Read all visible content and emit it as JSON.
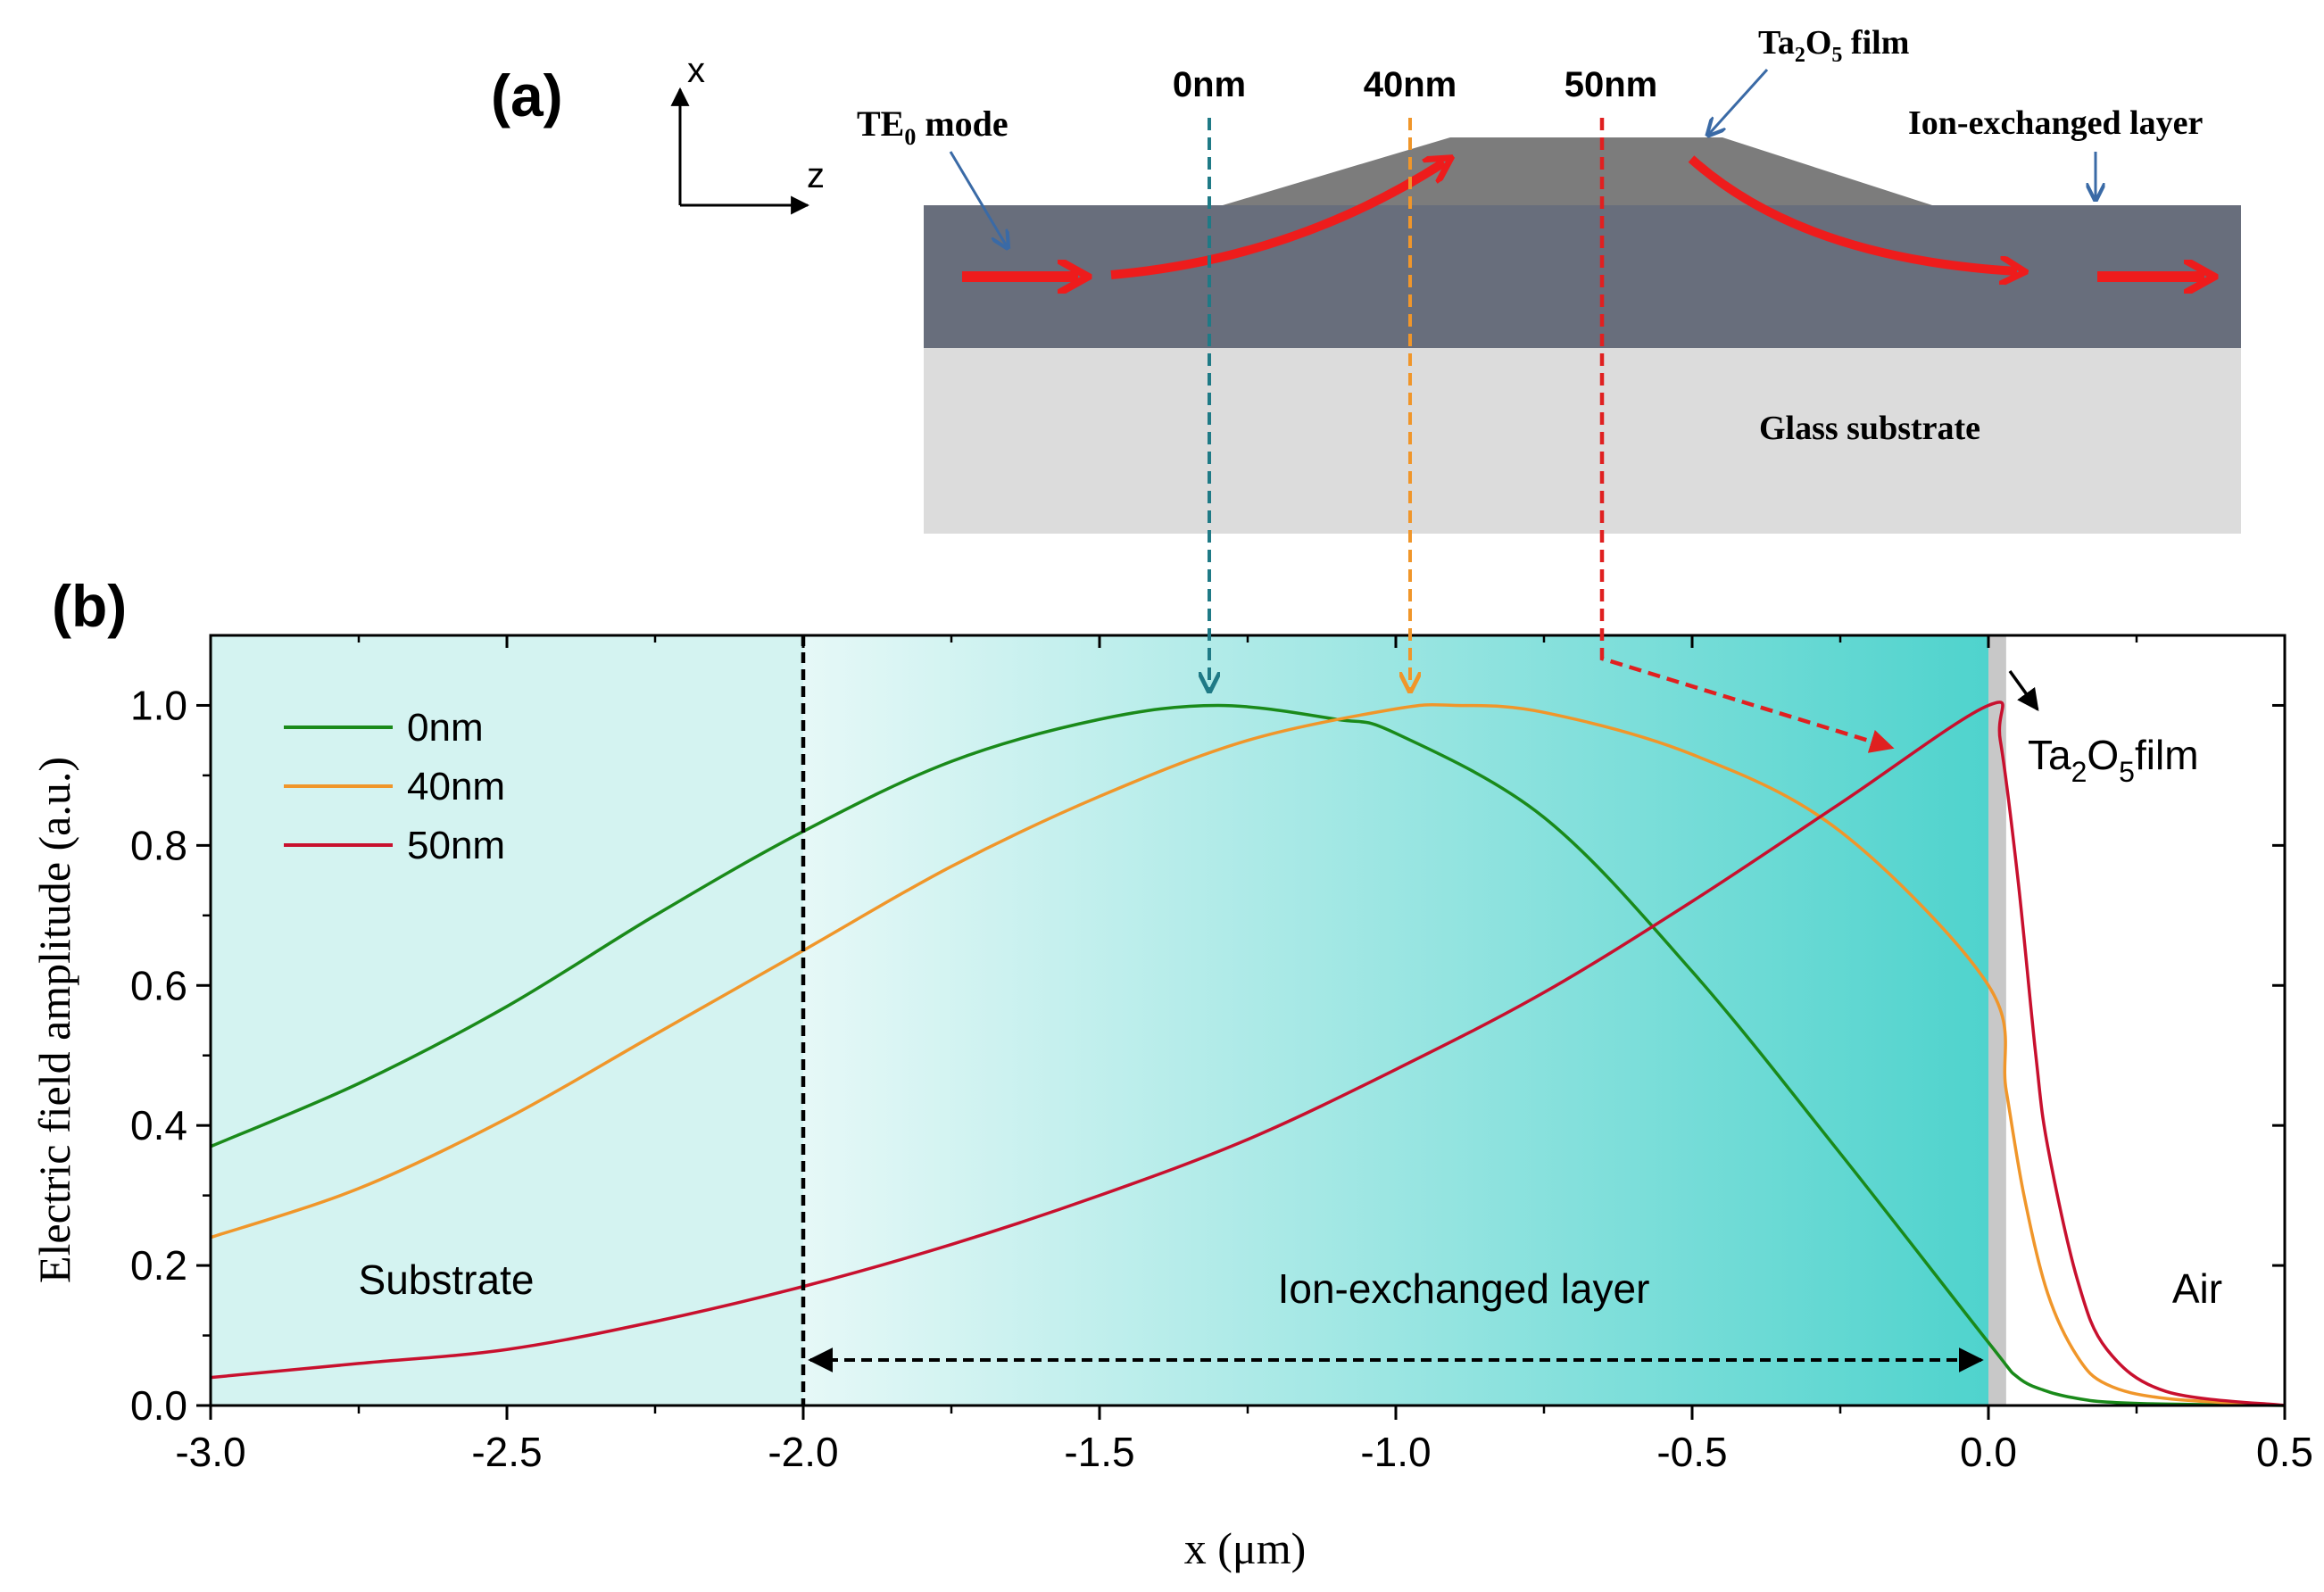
{
  "panel_a": {
    "label": "(a)",
    "axis_x": "x",
    "axis_z": "z",
    "te_mode_main": "TE",
    "te_mode_sub": "0",
    "te_mode_rest": " mode",
    "thk_0": "0nm",
    "thk_40": "40nm",
    "thk_50": "50nm",
    "film_main": "Ta",
    "film_sub1": "2",
    "film_mid": "O",
    "film_sub2": "5",
    "film_rest": " film",
    "ion_layer": "Ion-exchanged layer",
    "substrate": "Glass substrate"
  },
  "panel_b": {
    "label": "(b)",
    "region_substrate": "Substrate",
    "region_ion": "Ion-exchanged layer",
    "region_air": "Air",
    "film_main": "Ta",
    "film_sub1": "2",
    "film_mid": "O",
    "film_sub2": "5",
    "film_rest": "film"
  },
  "colors": {
    "green": "#1a8a1a",
    "orange": "#f0962a",
    "red": "#c8102e",
    "teal_arrow": "#1f7a86",
    "red_arrow": "#e02020"
  },
  "chart_data": {
    "type": "line",
    "xlabel": "x (μm)",
    "ylabel": "Electric field amplitude (a.u.)",
    "xlim": [
      -3.0,
      0.5
    ],
    "ylim": [
      0.0,
      1.1
    ],
    "xticks": [
      -3.0,
      -2.5,
      -2.0,
      -1.5,
      -1.0,
      -0.5,
      0.0,
      0.5
    ],
    "xtick_labels": [
      "-3.0",
      "-2.5",
      "-2.0",
      "-1.5",
      "-1.0",
      "-0.5",
      "0.0",
      "0.5"
    ],
    "yticks": [
      0.0,
      0.2,
      0.4,
      0.6,
      0.8,
      1.0
    ],
    "ytick_labels": [
      "0.0",
      "0.2",
      "0.4",
      "0.6",
      "0.8",
      "1.0"
    ],
    "legend_position": "top-left",
    "series": [
      {
        "name": "0nm",
        "color": "#1a8a1a",
        "x": [
          -3.0,
          -2.75,
          -2.5,
          -2.25,
          -2.0,
          -1.75,
          -1.5,
          -1.3,
          -1.1,
          -1.0,
          -0.75,
          -0.5,
          -0.25,
          0.0,
          0.05,
          0.1,
          0.15,
          0.2,
          0.3,
          0.5
        ],
        "y": [
          0.37,
          0.46,
          0.57,
          0.7,
          0.82,
          0.92,
          0.98,
          1.0,
          0.98,
          0.96,
          0.84,
          0.62,
          0.36,
          0.09,
          0.04,
          0.02,
          0.01,
          0.005,
          0.002,
          0.0
        ]
      },
      {
        "name": "40nm",
        "color": "#f0962a",
        "x": [
          -3.0,
          -2.75,
          -2.5,
          -2.25,
          -2.0,
          -1.75,
          -1.5,
          -1.25,
          -1.0,
          -0.9,
          -0.75,
          -0.5,
          -0.25,
          0.0,
          0.03,
          0.06,
          0.1,
          0.15,
          0.2,
          0.3,
          0.5
        ],
        "y": [
          0.24,
          0.31,
          0.41,
          0.53,
          0.65,
          0.77,
          0.87,
          0.95,
          0.995,
          1.0,
          0.99,
          0.93,
          0.82,
          0.6,
          0.45,
          0.3,
          0.16,
          0.07,
          0.03,
          0.01,
          0.0
        ]
      },
      {
        "name": "50nm",
        "color": "#c8102e",
        "x": [
          -3.0,
          -2.75,
          -2.5,
          -2.25,
          -2.0,
          -1.75,
          -1.5,
          -1.25,
          -1.0,
          -0.75,
          -0.5,
          -0.25,
          0.0,
          0.02,
          0.05,
          0.08,
          0.1,
          0.15,
          0.2,
          0.3,
          0.5
        ],
        "y": [
          0.04,
          0.06,
          0.08,
          0.12,
          0.17,
          0.23,
          0.3,
          0.38,
          0.48,
          0.59,
          0.72,
          0.86,
          1.0,
          0.95,
          0.75,
          0.5,
          0.37,
          0.18,
          0.08,
          0.02,
          0.0
        ]
      }
    ],
    "annotations": {
      "ion_layer_span": [
        -2.0,
        0.0
      ],
      "film_band": [
        0.0,
        0.03
      ]
    }
  }
}
